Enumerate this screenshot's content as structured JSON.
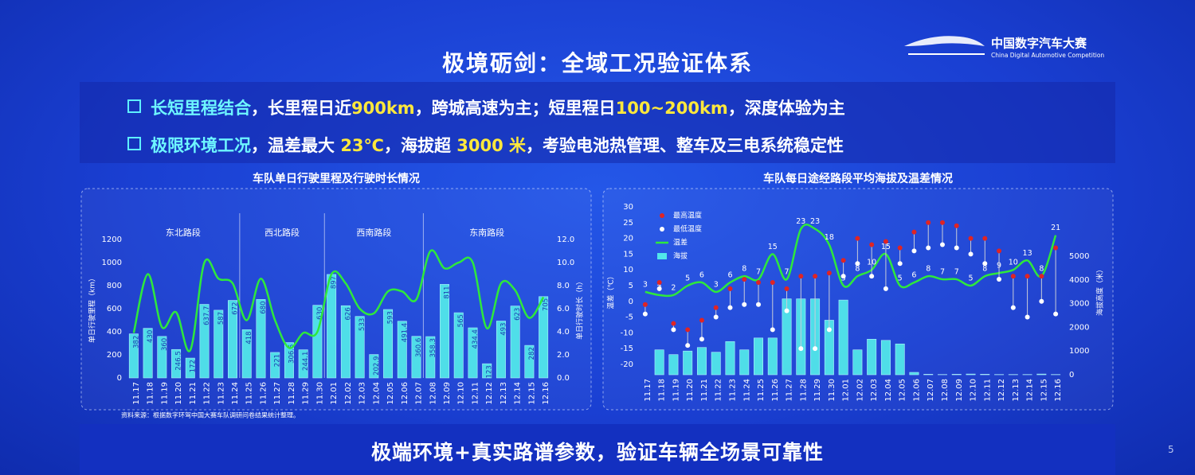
{
  "slide": {
    "title": "极境砺剑：全域工况验证体系",
    "logo": {
      "name": "中国数字汽车大赛",
      "subtitle": "China Digital Automotive Competition"
    },
    "bullets": [
      {
        "segments": [
          {
            "text": "长短里程结合",
            "style": "lead"
          },
          {
            "text": "，长里程日近",
            "style": "plain"
          },
          {
            "text": "900km",
            "style": "num"
          },
          {
            "text": "，跨城高速为主；短里程日",
            "style": "plain"
          },
          {
            "text": "100~200km",
            "style": "num"
          },
          {
            "text": "，深度体验为主",
            "style": "plain"
          }
        ]
      },
      {
        "segments": [
          {
            "text": "极限环境工况",
            "style": "lead"
          },
          {
            "text": "，温差最大 ",
            "style": "plain"
          },
          {
            "text": "23℃",
            "style": "num"
          },
          {
            "text": "，海拔超 ",
            "style": "plain"
          },
          {
            "text": "3000 米",
            "style": "num"
          },
          {
            "text": "，考验电池热管理、整车及三电系统稳定性",
            "style": "plain"
          }
        ]
      }
    ],
    "source": "资料来源：根据数字环驾中国大赛车队调研问卷结果统计整理。",
    "footer": "极端环境+真实路谱参数，验证车辆全场景可靠性",
    "page": 5
  },
  "chart_data": [
    {
      "type": "combo",
      "title": "车队单日行驶里程及行驶时长情况",
      "categories": [
        "11.17",
        "11.18",
        "11.19",
        "11.20",
        "11.21",
        "11.22",
        "11.23",
        "11.24",
        "11.25",
        "11.26",
        "11.27",
        "11.28",
        "11.29",
        "11.30",
        "12.01",
        "12.02",
        "12.03",
        "12.04",
        "12.05",
        "12.06",
        "12.07",
        "12.08",
        "12.09",
        "12.10",
        "12.11",
        "12.12",
        "12.13",
        "12.14",
        "12.15",
        "12.16"
      ],
      "y_label": "单日行驶里程（km）",
      "y2_label": "单日行驶时长（h）",
      "ylim": [
        0,
        1200
      ],
      "yticks": [
        0,
        200,
        400,
        600,
        800,
        1000,
        1200
      ],
      "y2lim": [
        0,
        12
      ],
      "y2ticks": [
        {
          "value": 0,
          "label": "0.0"
        },
        {
          "value": 2,
          "label": "2.0"
        },
        {
          "value": 4,
          "label": "4.0"
        },
        {
          "value": 6,
          "label": "6.0"
        },
        {
          "value": 8,
          "label": "8.0"
        },
        {
          "value": 10,
          "label": "10.0"
        },
        {
          "value": 12,
          "label": "12.0"
        }
      ],
      "regions": [
        {
          "label": "东北路段",
          "from": "11.17"
        },
        {
          "label": "西北路段",
          "from": "11.25"
        },
        {
          "label": "西南路段",
          "from": "12.01"
        },
        {
          "label": "东南路段",
          "from": "12.08"
        }
      ],
      "series": [
        {
          "type": "bar",
          "color": "#52e6ea",
          "labels": true,
          "values": [
            382,
            430,
            360,
            246.5,
            172,
            637.7,
            587,
            672,
            418,
            680,
            221,
            306.5,
            244.1,
            630,
            897,
            626,
            533,
            202.9,
            593,
            491.4,
            360.6,
            358.3,
            811,
            565,
            434.4,
            123,
            493,
            623,
            282,
            705
          ]
        },
        {
          "type": "line",
          "axis": "y2",
          "color": "#2ee83c",
          "values": [
            3.9,
            9.0,
            4.4,
            5.7,
            2.4,
            10.0,
            8.6,
            8.2,
            5.0,
            8.6,
            5.0,
            2.6,
            3.9,
            4.0,
            9.0,
            8.2,
            6.0,
            5.6,
            7.5,
            7.5,
            6.8,
            11.0,
            9.5,
            10.0,
            10.0,
            4.3,
            8.2,
            7.6,
            5.2,
            7.0
          ]
        }
      ]
    },
    {
      "type": "combo",
      "title": "车队每日途经路段平均海拔及温差情况",
      "categories": [
        "11.17",
        "11.18",
        "11.19",
        "11.20",
        "11.21",
        "11.22",
        "11.23",
        "11.24",
        "11.25",
        "11.26",
        "11.27",
        "11.28",
        "11.29",
        "11.30",
        "12.01",
        "12.02",
        "12.03",
        "12.04",
        "12.05",
        "12.06",
        "12.07",
        "12.08",
        "12.09",
        "12.10",
        "12.11",
        "12.12",
        "12.13",
        "12.14",
        "12.15",
        "12.16"
      ],
      "y_label": "温差（℃）",
      "y2_label": "海拔高度（米）",
      "ylim": [
        -23.3,
        30
      ],
      "yticks": [
        -20,
        -15,
        -10,
        -5,
        0,
        5,
        10,
        15,
        20,
        25,
        30
      ],
      "y2lim": [
        0,
        7080
      ],
      "y2ticks": [
        0,
        1000,
        2000,
        3000,
        4000,
        5000
      ],
      "legend": "top-left",
      "series": [
        {
          "name": "海拔",
          "type": "bar",
          "axis": "y2",
          "color": "#52e6ea",
          "values": [
            0,
            1050,
            850,
            1000,
            1150,
            950,
            1400,
            1050,
            1550,
            1550,
            3200,
            3200,
            3200,
            2300,
            3150,
            1050,
            1500,
            1450,
            1300,
            100,
            20,
            10,
            20,
            30,
            20,
            10,
            10,
            10,
            30,
            10
          ]
        },
        {
          "name": "最高温度",
          "type": "scatter",
          "color": "#e02424",
          "values": [
            -1,
            6,
            -7,
            -9,
            -6,
            -2,
            4,
            7,
            6,
            6,
            4,
            8,
            8,
            9,
            13,
            20,
            18,
            19,
            17,
            22,
            25,
            25,
            24,
            20,
            20,
            16,
            8,
            8,
            8,
            17
          ]
        },
        {
          "name": "最低温度",
          "type": "scatter",
          "color": "#ffffff",
          "values": [
            -4,
            4,
            -9,
            -14,
            -12,
            -5,
            -2,
            -1,
            -1,
            -9,
            -3,
            -15,
            -15,
            -9,
            8,
            12,
            8,
            4,
            12,
            16,
            17,
            18,
            17,
            15,
            12,
            7,
            -2,
            -5,
            0,
            -4
          ]
        },
        {
          "name": "温差",
          "type": "line",
          "color": "#2ee83c",
          "labels": true,
          "values": [
            3,
            2,
            2,
            5,
            6,
            3,
            6,
            8,
            7,
            15,
            7,
            23,
            23,
            18,
            5,
            8,
            10,
            15,
            5,
            6,
            8,
            7,
            7,
            5,
            8,
            9,
            10,
            13,
            8,
            21
          ]
        }
      ]
    }
  ]
}
